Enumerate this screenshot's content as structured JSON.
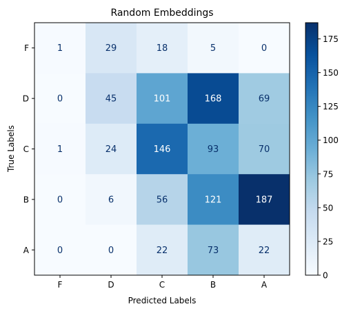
{
  "chart_data": {
    "type": "heatmap",
    "title": "Random Embeddings",
    "xlabel": "Predicted Labels",
    "ylabel": "True Labels",
    "x_categories": [
      "F",
      "D",
      "C",
      "B",
      "A"
    ],
    "y_categories": [
      "F",
      "D",
      "C",
      "B",
      "A"
    ],
    "values": [
      [
        1,
        29,
        18,
        5,
        0
      ],
      [
        0,
        45,
        101,
        168,
        69
      ],
      [
        1,
        24,
        146,
        93,
        70
      ],
      [
        0,
        6,
        56,
        121,
        187
      ],
      [
        0,
        0,
        22,
        73,
        22
      ]
    ],
    "colormap": "Blues",
    "vmin": 0,
    "vmax": 187,
    "colorbar_ticks": [
      0,
      25,
      50,
      75,
      100,
      125,
      150,
      175
    ],
    "colors": {
      "low": "#f7fbff",
      "high": "#08306b",
      "text_dark": "#08306b",
      "text_light": "#ffffff"
    }
  }
}
